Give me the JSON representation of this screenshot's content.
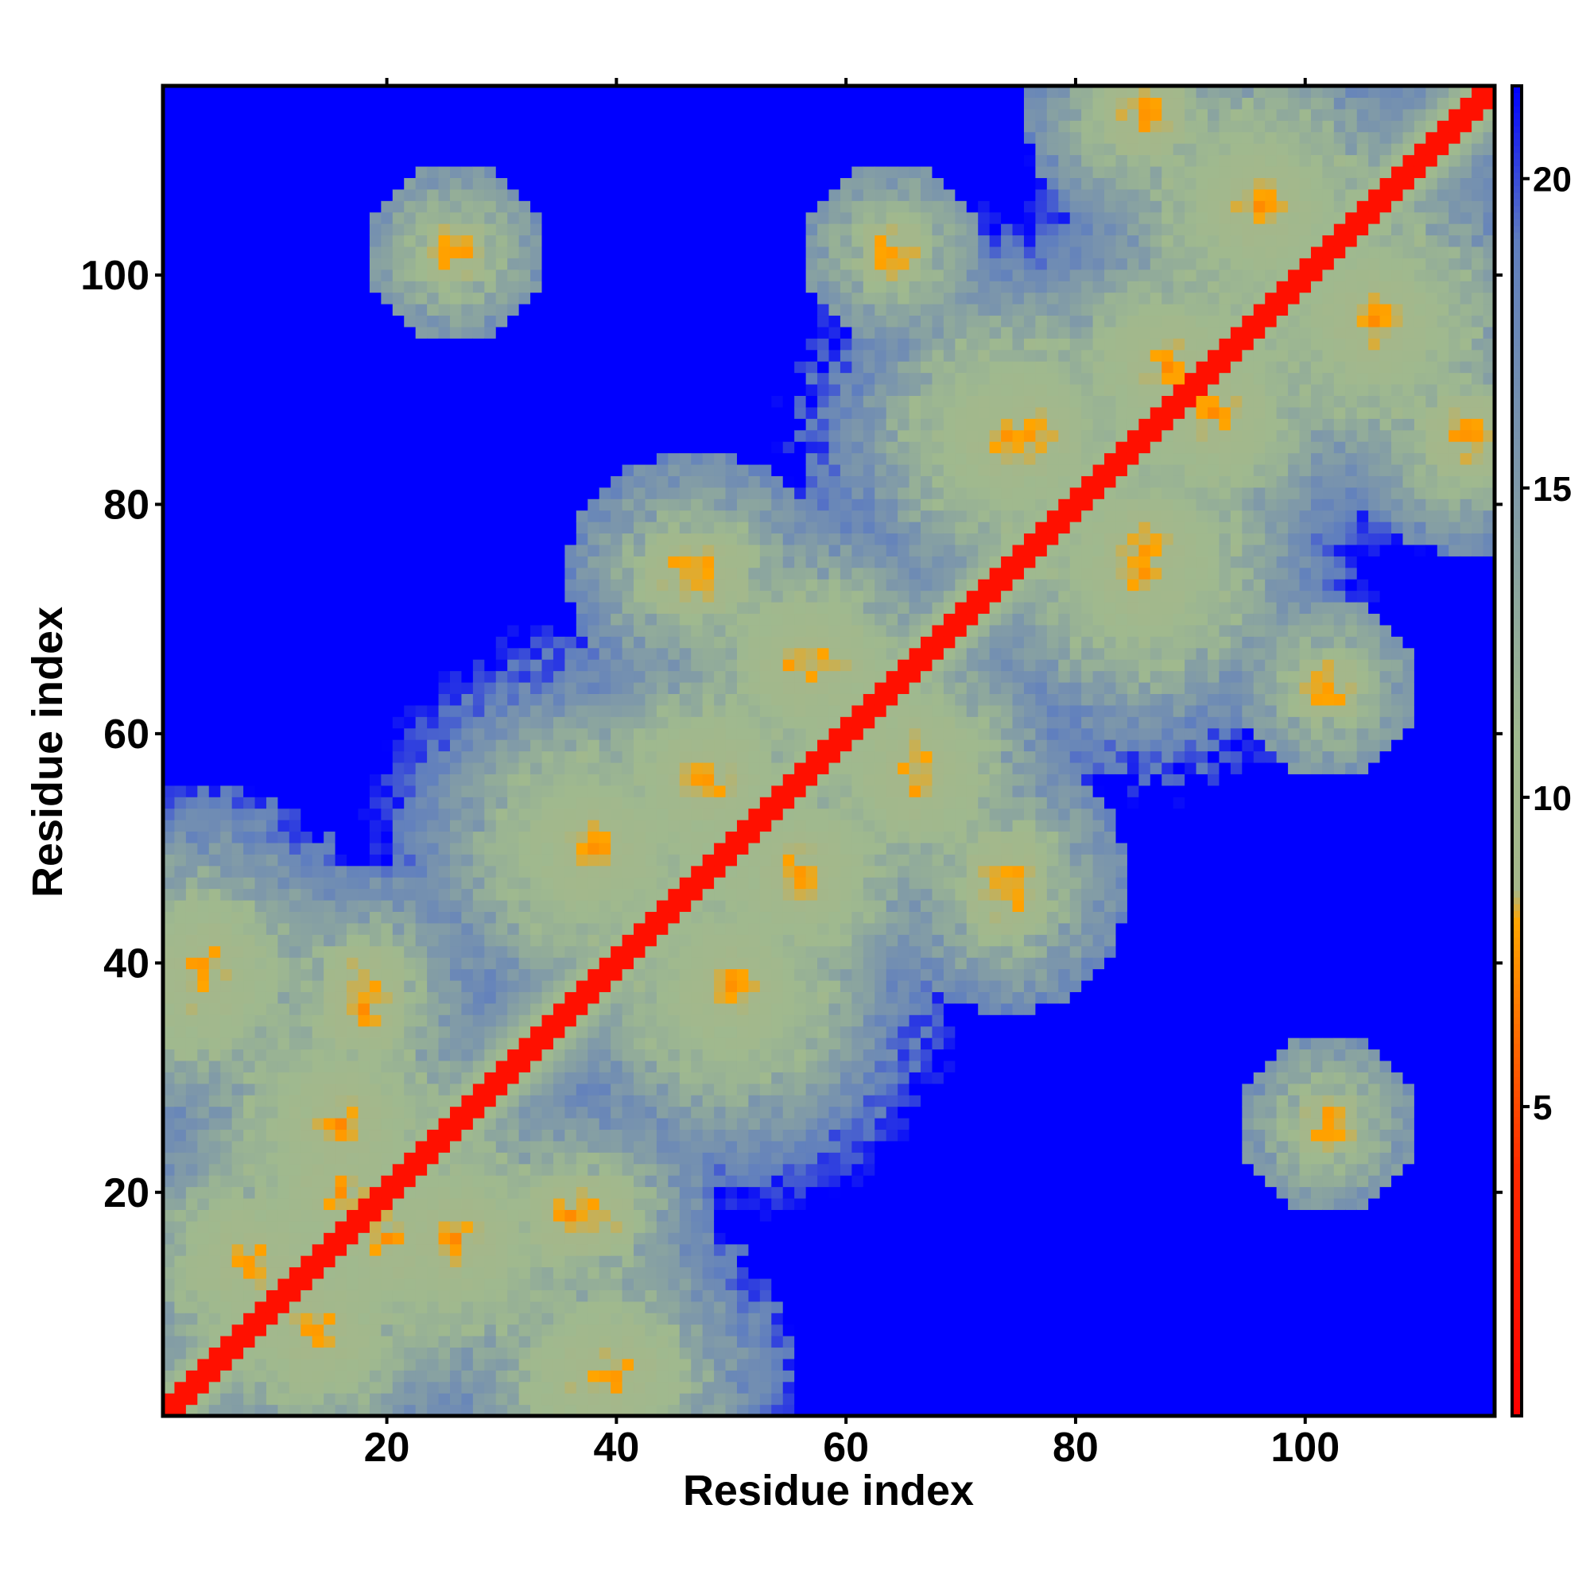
{
  "chart_data": {
    "type": "heatmap",
    "title": "",
    "xlabel": "Residue index",
    "ylabel": "Residue index",
    "n_residues": 116,
    "xlim": [
      1,
      116
    ],
    "ylim": [
      1,
      116
    ],
    "x_ticks": [
      20,
      40,
      60,
      80,
      100
    ],
    "y_ticks": [
      20,
      40,
      60,
      80,
      100
    ],
    "x_tick_labels": [
      "20",
      "40",
      "60",
      "80",
      "100"
    ],
    "y_tick_labels": [
      "20",
      "40",
      "60",
      "80",
      "100"
    ],
    "colorbar": {
      "ticks": [
        5,
        10,
        15,
        20
      ],
      "tick_labels": [
        "5",
        "10",
        "15",
        "20"
      ],
      "range": [
        0,
        21.5
      ],
      "stops": [
        {
          "value": 0.0,
          "color": "#ff0000"
        },
        {
          "value": 4.0,
          "color": "#ff2a00"
        },
        {
          "value": 8.0,
          "color": "#ffa500"
        },
        {
          "value": 8.5,
          "color": "#a5b78a"
        },
        {
          "value": 11.0,
          "color": "#9fb98f"
        },
        {
          "value": 15.0,
          "color": "#7f99a9"
        },
        {
          "value": 19.0,
          "color": "#5f7ebf"
        },
        {
          "value": 21.5,
          "color": "#0000ff"
        }
      ]
    },
    "cap_value": 22,
    "cap_color": "#0000ff",
    "grid": false,
    "legend": "colorbar-right",
    "contact_map_structure": {
      "diagonal": {
        "value": 1.5,
        "half_width_residues": 1
      },
      "near_diagonal_band": {
        "value": 9,
        "half_width_residues": 3
      },
      "contact_clusters": [
        {
          "x": 8,
          "y": 14,
          "value": 7,
          "span": 6
        },
        {
          "x": 14,
          "y": 8,
          "value": 7,
          "span": 6
        },
        {
          "x": 20,
          "y": 16,
          "value": 7,
          "span": 8
        },
        {
          "x": 26,
          "y": 16,
          "value": 7,
          "span": 6
        },
        {
          "x": 16,
          "y": 26,
          "value": 7,
          "span": 8
        },
        {
          "x": 38,
          "y": 4,
          "value": 7,
          "span": 6
        },
        {
          "x": 4,
          "y": 40,
          "value": 7,
          "span": 6
        },
        {
          "x": 18,
          "y": 38,
          "value": 7,
          "span": 4
        },
        {
          "x": 36,
          "y": 18,
          "value": 7,
          "span": 4
        },
        {
          "x": 38,
          "y": 50,
          "value": 7,
          "span": 8
        },
        {
          "x": 50,
          "y": 38,
          "value": 7,
          "span": 8
        },
        {
          "x": 48,
          "y": 56,
          "value": 7,
          "span": 6
        },
        {
          "x": 56,
          "y": 48,
          "value": 7,
          "span": 6
        },
        {
          "x": 46,
          "y": 74,
          "value": 7,
          "span": 4
        },
        {
          "x": 56,
          "y": 66,
          "value": 7,
          "span": 6
        },
        {
          "x": 66,
          "y": 58,
          "value": 7,
          "span": 6
        },
        {
          "x": 74,
          "y": 48,
          "value": 7,
          "span": 4
        },
        {
          "x": 74,
          "y": 86,
          "value": 7,
          "span": 8
        },
        {
          "x": 86,
          "y": 76,
          "value": 7,
          "span": 8
        },
        {
          "x": 88,
          "y": 92,
          "value": 7,
          "span": 6
        },
        {
          "x": 92,
          "y": 88,
          "value": 7,
          "span": 6
        },
        {
          "x": 96,
          "y": 106,
          "value": 7,
          "span": 8
        },
        {
          "x": 106,
          "y": 96,
          "value": 7,
          "span": 8
        },
        {
          "x": 86,
          "y": 114,
          "value": 7,
          "span": 4
        },
        {
          "x": 114,
          "y": 86,
          "value": 7,
          "span": 4
        },
        {
          "x": 102,
          "y": 26,
          "value": 7,
          "span": 3
        },
        {
          "x": 26,
          "y": 102,
          "value": 7,
          "span": 3
        },
        {
          "x": 102,
          "y": 64,
          "value": 7,
          "span": 3
        },
        {
          "x": 64,
          "y": 102,
          "value": 7,
          "span": 3
        }
      ],
      "far_off_diagonal_value": 22
    }
  }
}
